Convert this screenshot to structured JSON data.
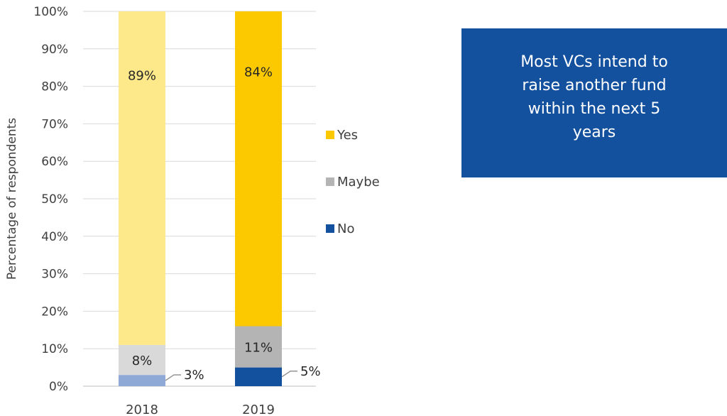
{
  "chart_data": {
    "type": "stacked-bar",
    "categories": [
      "2018",
      "2019"
    ],
    "series": [
      {
        "name": "No",
        "values": [
          3,
          5
        ],
        "labels": [
          "3%",
          "5%"
        ],
        "colors": [
          "#8ea9d6",
          "#13509e"
        ]
      },
      {
        "name": "Maybe",
        "values": [
          8,
          11
        ],
        "labels": [
          "8%",
          "11%"
        ],
        "colors": [
          "#d9d9d9",
          "#b4b4b4"
        ]
      },
      {
        "name": "Yes",
        "values": [
          89,
          84
        ],
        "labels": [
          "89%",
          "84%"
        ],
        "colors": [
          "#fde88a",
          "#fcc800"
        ]
      }
    ],
    "legend": {
      "position": "right",
      "order": [
        "Yes",
        "Maybe",
        "No"
      ],
      "colors": [
        "#fcc800",
        "#b4b4b4",
        "#13509e"
      ]
    },
    "ylabel": "Percentage of respondents",
    "xlabel": "",
    "ylim": [
      0,
      100
    ],
    "yticks": [
      "0%",
      "10%",
      "20%",
      "30%",
      "40%",
      "50%",
      "60%",
      "70%",
      "80%",
      "90%",
      "100%"
    ],
    "grid": true
  },
  "callout": {
    "text": "Most VCs intend to raise another fund within the next 5 years",
    "background": "#13509e",
    "color": "#ffffff"
  }
}
